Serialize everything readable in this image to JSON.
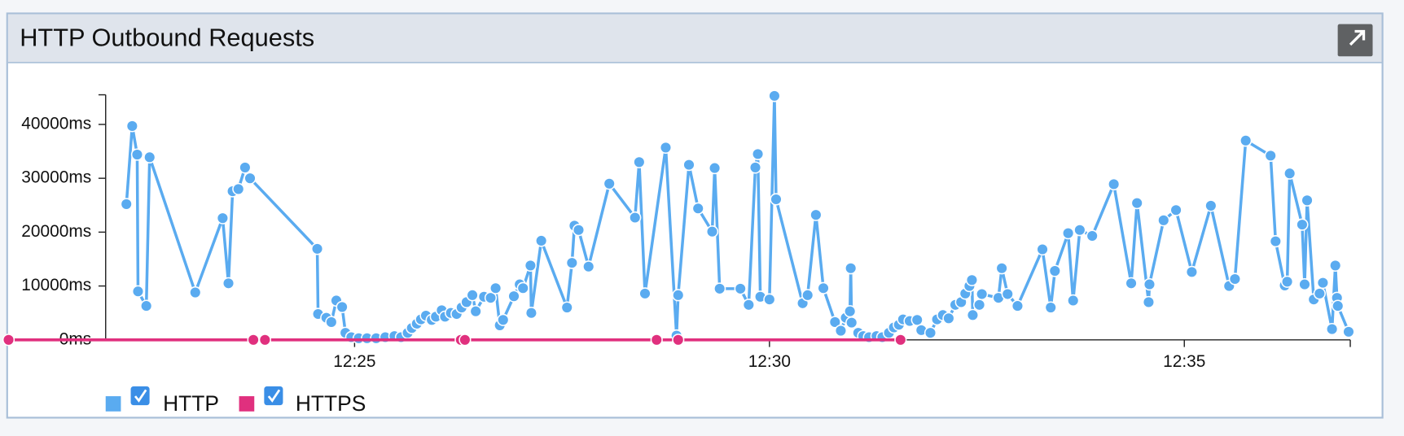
{
  "chart_data": {
    "type": "line",
    "title": "HTTP Outbound Requests",
    "xlim": [
      22,
      37
    ],
    "xticks": [
      {
        "value": 25,
        "label": "12:25"
      },
      {
        "value": 30,
        "label": "12:30"
      },
      {
        "value": 35,
        "label": "12:35"
      }
    ],
    "ylim": [
      0,
      45500
    ],
    "yticks": [
      {
        "value": 0,
        "label": "0ms"
      },
      {
        "value": 10000,
        "label": "10000ms"
      },
      {
        "value": 20000,
        "label": "20000ms"
      },
      {
        "value": 30000,
        "label": "30000ms"
      },
      {
        "value": 40000,
        "label": "40000ms"
      }
    ],
    "series": [
      {
        "name": "HTTP",
        "color": "#5aabf0",
        "x": [
          22.25,
          22.32,
          22.38,
          22.39,
          22.49,
          22.53,
          23.08,
          23.41,
          23.48,
          23.53,
          23.6,
          23.68,
          23.74,
          24.55,
          24.56,
          24.66,
          24.72,
          24.78,
          24.85,
          24.89,
          24.96,
          25.05,
          25.15,
          25.26,
          25.37,
          25.48,
          25.56,
          25.64,
          25.69,
          25.75,
          25.8,
          25.86,
          25.93,
          25.98,
          26.05,
          26.09,
          26.16,
          26.23,
          26.29,
          26.35,
          26.42,
          26.46,
          26.56,
          26.64,
          26.7,
          26.75,
          26.79,
          26.92,
          26.99,
          27.03,
          27.12,
          27.13,
          27.25,
          27.56,
          27.62,
          27.65,
          27.7,
          27.82,
          28.07,
          28.38,
          28.43,
          28.5,
          28.75,
          28.88,
          28.9,
          29.03,
          29.14,
          29.31,
          29.34,
          29.4,
          29.65,
          29.75,
          29.83,
          29.86,
          29.89,
          30.0,
          30.06,
          30.08,
          30.4,
          30.46,
          30.56,
          30.65,
          30.79,
          30.86,
          30.92,
          30.97,
          30.98,
          30.99,
          31.07,
          31.13,
          31.2,
          31.29,
          31.36,
          31.44,
          31.5,
          31.56,
          31.61,
          31.69,
          31.78,
          31.83,
          31.94,
          32.02,
          32.09,
          32.16,
          32.24,
          32.31,
          32.36,
          32.41,
          32.44,
          32.45,
          32.53,
          32.56,
          32.76,
          32.8,
          32.87,
          32.99,
          33.29,
          33.39,
          33.44,
          33.6,
          33.66,
          33.74,
          33.89,
          34.15,
          34.36,
          34.43,
          34.57,
          34.58,
          34.75,
          34.9,
          35.09,
          35.32,
          35.54,
          35.61,
          35.74,
          36.04,
          36.1,
          36.21,
          36.24,
          36.27,
          36.42,
          36.45,
          36.48,
          36.56,
          36.63,
          36.67,
          36.78,
          36.82,
          36.84,
          36.85,
          36.98
        ],
        "values": [
          25200,
          39700,
          34400,
          9000,
          6300,
          33900,
          8800,
          22600,
          10500,
          27600,
          28000,
          32000,
          30000,
          16900,
          4800,
          4100,
          3300,
          7300,
          6100,
          1300,
          500,
          300,
          300,
          300,
          500,
          700,
          500,
          1300,
          2200,
          3000,
          3800,
          4500,
          3700,
          4300,
          5500,
          4300,
          5000,
          4800,
          6000,
          7000,
          8300,
          5300,
          8000,
          7800,
          9600,
          2700,
          3700,
          8100,
          10300,
          9600,
          13800,
          5000,
          18400,
          6000,
          14300,
          21200,
          20400,
          13600,
          29000,
          22700,
          33000,
          8600,
          35700,
          800,
          8300,
          32500,
          24400,
          20100,
          31900,
          9500,
          9500,
          6500,
          32000,
          34500,
          8000,
          7500,
          45300,
          26100,
          6800,
          8300,
          23200,
          9600,
          3300,
          1700,
          4100,
          5300,
          13300,
          3200,
          1300,
          700,
          500,
          700,
          500,
          1300,
          2300,
          2800,
          3800,
          3500,
          3700,
          1800,
          1300,
          3800,
          4600,
          4000,
          6500,
          7000,
          8600,
          10000,
          11100,
          4600,
          6500,
          8500,
          7800,
          13300,
          8500,
          6300,
          16800,
          6000,
          12800,
          19800,
          7300,
          20400,
          19300,
          28900,
          10500,
          25400,
          7000,
          10300,
          22200,
          24100,
          12600,
          24900,
          10000,
          11300,
          37000,
          34200,
          18300,
          10100,
          10800,
          30900,
          21400,
          10300,
          25900,
          7500,
          8600,
          10600,
          2000,
          13800,
          7800,
          6300,
          1500
        ]
      },
      {
        "name": "HTTPS",
        "color": "#e0307e",
        "x": [
          20.83,
          23.78,
          23.92,
          26.28,
          26.33,
          28.64,
          28.9,
          31.58
        ],
        "values": [
          0,
          0,
          0,
          0,
          0,
          0,
          0,
          0
        ]
      }
    ]
  }
}
